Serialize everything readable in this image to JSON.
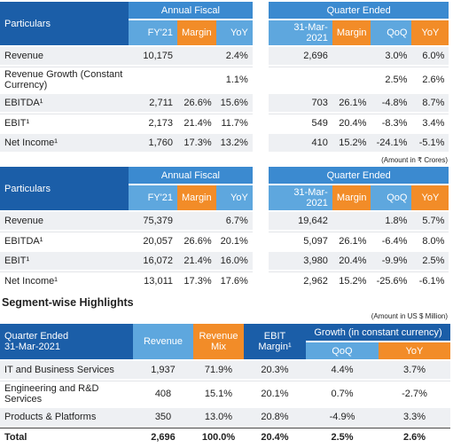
{
  "table1": {
    "header": {
      "particulars": "Particulars",
      "annual": "Annual Fiscal",
      "quarter": "Quarter Ended",
      "columns": [
        "FY'21",
        "Margin",
        "YoY",
        "31-Mar-2021",
        "Margin",
        "QoQ",
        "YoY"
      ]
    },
    "rows": [
      [
        "Revenue",
        "10,175",
        null,
        "2.4%",
        "2,696",
        null,
        "3.0%",
        "6.0%"
      ],
      [
        "Revenue Growth (Constant Currency)",
        null,
        null,
        "1.1%",
        null,
        null,
        "2.5%",
        "2.6%"
      ],
      [
        "EBITDA¹",
        "2,711",
        "26.6%",
        "15.6%",
        "703",
        "26.1%",
        "-4.8%",
        "8.7%"
      ],
      [
        "EBIT¹",
        "2,173",
        "21.4%",
        "11.7%",
        "549",
        "20.4%",
        "-8.3%",
        "3.4%"
      ],
      [
        "Net Income¹",
        "1,760",
        "17.3%",
        "13.2%",
        "410",
        "15.2%",
        "-24.1%",
        "-5.1%"
      ]
    ]
  },
  "note1": "(Amount in ₹ Crores)",
  "table2": {
    "header": {
      "particulars": "Particulars",
      "annual": "Annual Fiscal",
      "quarter": "Quarter Ended",
      "columns": [
        "FY'21",
        "Margin",
        "YoY",
        "31-Mar-2021",
        "Margin",
        "QoQ",
        "YoY"
      ]
    },
    "rows": [
      [
        "Revenue",
        "75,379",
        null,
        "6.7%",
        "19,642",
        null,
        "1.8%",
        "5.7%"
      ],
      [
        "EBITDA¹",
        "20,057",
        "26.6%",
        "20.1%",
        "5,097",
        "26.1%",
        "-6.4%",
        "8.0%"
      ],
      [
        "EBIT¹",
        "16,072",
        "21.4%",
        "16.0%",
        "3,980",
        "20.4%",
        "-9.9%",
        "2.5%"
      ],
      [
        "Net Income¹",
        "13,011",
        "17.3%",
        "17.6%",
        "2,962",
        "15.2%",
        "-25.6%",
        "-6.1%"
      ]
    ]
  },
  "segment_title": "Segment-wise Highlights",
  "note2": "(Amount in US $ Million)",
  "table3": {
    "header": {
      "first": [
        "Quarter Ended",
        "31-Mar-2021"
      ],
      "revenue": "Revenue",
      "mix": "Revenue Mix",
      "ebit": "EBIT Margin¹",
      "growth": "Growth (in constant currency)",
      "qoq": "QoQ",
      "yoy": "YoY"
    },
    "rows": [
      [
        "IT and Business Services",
        "1,937",
        "71.9%",
        "20.3%",
        "4.4%",
        "3.7%"
      ],
      [
        "Engineering and R&D Services",
        "408",
        "15.1%",
        "20.1%",
        "0.7%",
        "-2.7%"
      ],
      [
        "Products & Platforms",
        "350",
        "13.0%",
        "20.8%",
        "-4.9%",
        "3.3%"
      ],
      [
        "Total",
        "2,696",
        "100.0%",
        "20.4%",
        "2.5%",
        "2.6%"
      ]
    ]
  }
}
